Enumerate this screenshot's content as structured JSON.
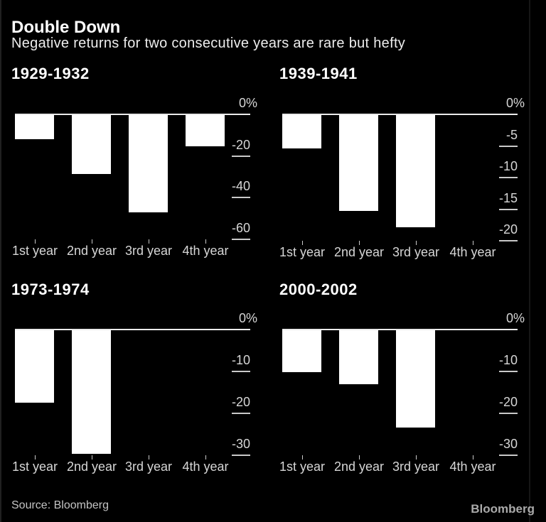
{
  "header": {
    "title": "Double Down",
    "subtitle": "Negative returns for two consecutive years are rare but hefty"
  },
  "footer": {
    "source_label": "Source: Bloomberg",
    "brand_logo": "Bloomberg"
  },
  "colors": {
    "background": "#000000",
    "bar": "#ffffff",
    "axis_line": "#ebebeb",
    "tick_mark": "#c9c9c9",
    "tick_label": "#d6d6d6",
    "title": "#ffffff",
    "subtitle": "#ededed",
    "source": "#c4c4c4",
    "logo": "#aaaaaa"
  },
  "chart_data": [
    {
      "type": "bar",
      "title": "1929-1932",
      "categories": [
        "1st year",
        "2nd year",
        "3rd year",
        "4th year"
      ],
      "values": [
        -11.9,
        -28.5,
        -47.1,
        -15.2
      ],
      "xlabel": "",
      "ylabel": "%",
      "ylim": [
        -60,
        0
      ],
      "grid": false,
      "legend": false,
      "yticks": [
        {
          "value": 0,
          "label": "0%"
        },
        {
          "value": -20,
          "label": "-20"
        },
        {
          "value": -40,
          "label": "-40"
        },
        {
          "value": -60,
          "label": "-60"
        }
      ]
    },
    {
      "type": "bar",
      "title": "1939-1941",
      "categories": [
        "1st year",
        "2nd year",
        "3rd year",
        "4th year"
      ],
      "values": [
        -5.4,
        -15.3,
        -17.9,
        null
      ],
      "xlabel": "",
      "ylabel": "%",
      "ylim": [
        -20,
        0
      ],
      "grid": false,
      "legend": false,
      "yticks": [
        {
          "value": 0,
          "label": "0%"
        },
        {
          "value": -5,
          "label": "-5"
        },
        {
          "value": -10,
          "label": "-10"
        },
        {
          "value": -15,
          "label": "-15"
        },
        {
          "value": -20,
          "label": "-20"
        }
      ]
    },
    {
      "type": "bar",
      "title": "1973-1974",
      "categories": [
        "1st year",
        "2nd year",
        "3rd year",
        "4th year"
      ],
      "values": [
        -17.4,
        -29.7,
        null,
        null
      ],
      "xlabel": "",
      "ylabel": "%",
      "ylim": [
        -30,
        0
      ],
      "grid": false,
      "legend": false,
      "yticks": [
        {
          "value": 0,
          "label": "0%"
        },
        {
          "value": -10,
          "label": "-10"
        },
        {
          "value": -20,
          "label": "-20"
        },
        {
          "value": -30,
          "label": "-30"
        }
      ]
    },
    {
      "type": "bar",
      "title": "2000-2002",
      "categories": [
        "1st year",
        "2nd year",
        "3rd year",
        "4th year"
      ],
      "values": [
        -10.1,
        -13.0,
        -23.4,
        null
      ],
      "xlabel": "",
      "ylabel": "%",
      "ylim": [
        -30,
        0
      ],
      "grid": false,
      "legend": false,
      "yticks": [
        {
          "value": 0,
          "label": "0%"
        },
        {
          "value": -10,
          "label": "-10"
        },
        {
          "value": -20,
          "label": "-20"
        },
        {
          "value": -30,
          "label": "-30"
        }
      ]
    }
  ]
}
